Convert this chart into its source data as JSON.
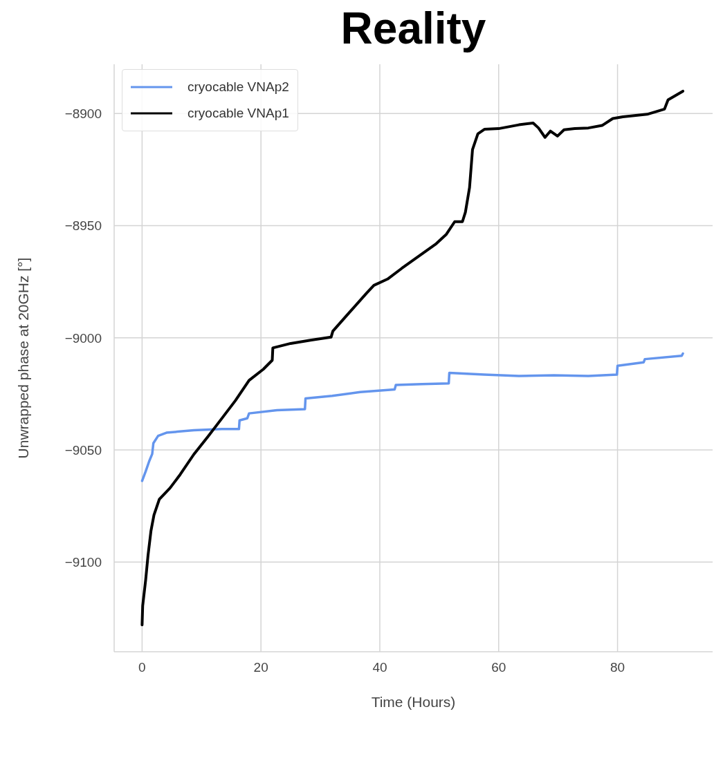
{
  "chart_data": {
    "type": "line",
    "title": "Reality",
    "xlabel": "Time (Hours)",
    "ylabel": "Unwrapped phase at 20GHz [°]",
    "xlim": [
      -4.7,
      96
    ],
    "xticks": [
      0,
      20,
      40,
      60,
      80
    ],
    "ylim": [
      -9140,
      -8878
    ],
    "yticks": [
      {
        "value": -8900,
        "label": "−8900"
      },
      {
        "value": -8950,
        "label": "−8950"
      },
      {
        "value": -9000,
        "label": "−9000"
      },
      {
        "value": -9050,
        "label": "−9050"
      },
      {
        "value": -9100,
        "label": "−9100"
      }
    ],
    "grid": true,
    "legend": "top left",
    "marker": "none",
    "line_style": "solid",
    "series": [
      {
        "name": "cryocable VNAp2",
        "color": "#6495ed",
        "x": [
          0,
          0.6,
          1.2,
          1.7,
          1.9,
          2.7,
          4.1,
          8.7,
          13.4,
          16.3,
          16.4,
          17.7,
          18,
          22.7,
          27.4,
          27.5,
          32,
          36.7,
          42.5,
          42.7,
          47.1,
          51.6,
          51.7,
          57.6,
          63.4,
          69.3,
          75.1,
          79.9,
          80,
          84.4,
          84.6,
          90.8,
          91
        ],
        "values": [
          -9063.8,
          -9059.6,
          -9055,
          -9051.8,
          -9047,
          -9043.7,
          -9042.3,
          -9041.2,
          -9040.7,
          -9040.7,
          -9036.8,
          -9035.9,
          -9033.7,
          -9032.3,
          -9031.8,
          -9027,
          -9025.9,
          -9024.2,
          -9023,
          -9021,
          -9020.6,
          -9020.3,
          -9015.6,
          -9016.4,
          -9017,
          -9016.7,
          -9017,
          -9016.4,
          -9012.5,
          -9010.9,
          -9009.5,
          -9008,
          -9007
        ]
      },
      {
        "name": "cryocable VNAp1",
        "color": "#000000",
        "x": [
          0,
          0.1,
          0.6,
          1,
          1.5,
          2,
          2.9,
          4.7,
          6.4,
          8.7,
          11.1,
          13.4,
          15.7,
          18,
          20.4,
          21.9,
          22,
          25,
          28.5,
          31.8,
          32.1,
          34.9,
          37.8,
          39,
          41.3,
          43.7,
          46.6,
          49.5,
          51.2,
          52.6,
          53.9,
          54.4,
          55.1,
          55.6,
          56.5,
          57.6,
          60,
          63.4,
          65.8,
          66.7,
          67.8,
          68.7,
          69.9,
          71,
          72.8,
          75.1,
          77.4,
          79.2,
          80.9,
          85,
          87.9,
          88.5,
          91
        ],
        "values": [
          -9128,
          -9119.5,
          -9108,
          -9097,
          -9086,
          -9079,
          -9072,
          -9067,
          -9061,
          -9052,
          -9044,
          -9036,
          -9028,
          -9019,
          -9014,
          -9010,
          -9004.5,
          -9002.5,
          -9001,
          -8999.7,
          -8997,
          -8988.6,
          -8980,
          -8976.6,
          -8973.8,
          -8969,
          -8963.5,
          -8958,
          -8953.8,
          -8948.2,
          -8948.2,
          -8944,
          -8933,
          -8916,
          -8909,
          -8907,
          -8906.7,
          -8905,
          -8904.2,
          -8906.4,
          -8910.6,
          -8907.8,
          -8910,
          -8907.2,
          -8906.7,
          -8906.4,
          -8905.3,
          -8902.2,
          -8901.4,
          -8900.3,
          -8898,
          -8893.9,
          -8890
        ]
      }
    ]
  }
}
